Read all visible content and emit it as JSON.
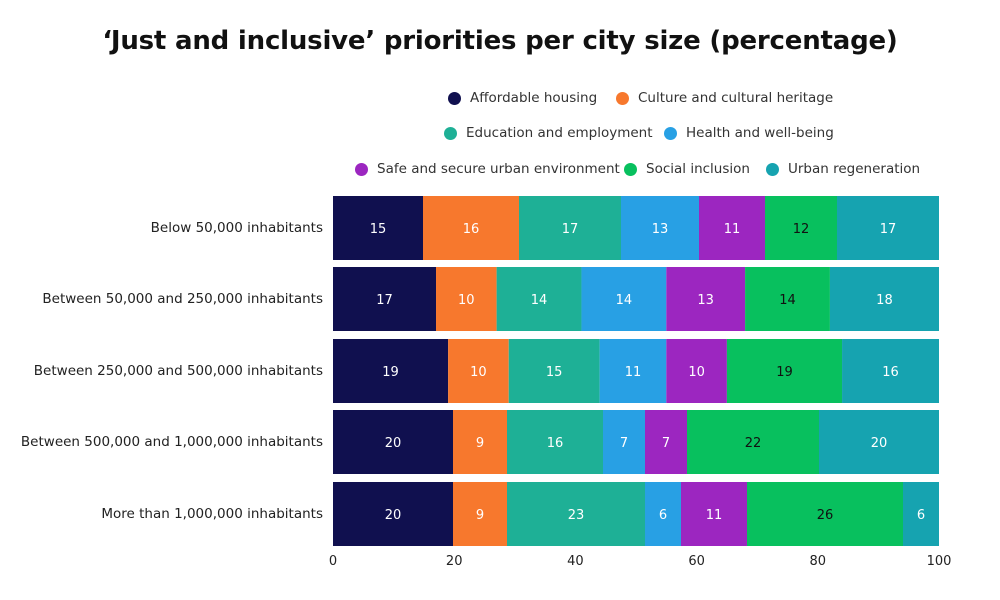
{
  "chart_data": {
    "type": "bar",
    "orientation": "horizontal",
    "stacked": true,
    "title": "‘Just and inclusive’ priorities per city size (percentage)",
    "categories": [
      "Below 50,000 inhabitants",
      "Between 50,000 and 250,000 inhabitants",
      "Between 250,000 and 500,000 inhabitants",
      "Between 500,000 and 1,000,000 inhabitants",
      "More than 1,000,000 inhabitants"
    ],
    "series": [
      {
        "name": "Affordable housing",
        "color": "#10104f",
        "label_color": "#ffffff",
        "values": [
          15,
          17,
          19,
          20,
          20
        ]
      },
      {
        "name": "Culture and cultural heritage",
        "color": "#f7782d",
        "label_color": "#ffffff",
        "values": [
          16,
          10,
          10,
          9,
          9
        ]
      },
      {
        "name": "Education and employment",
        "color": "#1eb096",
        "label_color": "#ffffff",
        "values": [
          17,
          14,
          15,
          16,
          23
        ]
      },
      {
        "name": "Health and well-being",
        "color": "#28a0e4",
        "label_color": "#ffffff",
        "values": [
          13,
          14,
          11,
          7,
          6
        ]
      },
      {
        "name": "Safe and secure urban environment",
        "color": "#9c26c0",
        "label_color": "#ffffff",
        "values": [
          11,
          13,
          10,
          7,
          11
        ]
      },
      {
        "name": "Social inclusion",
        "color": "#08c05e",
        "label_color": "#111111",
        "values": [
          12,
          14,
          19,
          22,
          26
        ]
      },
      {
        "name": "Urban regeneration",
        "color": "#16a3b0",
        "label_color": "#ffffff",
        "values": [
          17,
          18,
          16,
          20,
          6
        ]
      }
    ],
    "xlim": [
      0,
      100
    ],
    "xticks": [
      0,
      20,
      40,
      60,
      80,
      100
    ],
    "xlabel": "",
    "ylabel": "",
    "legend_position": "top",
    "grid": false
  }
}
